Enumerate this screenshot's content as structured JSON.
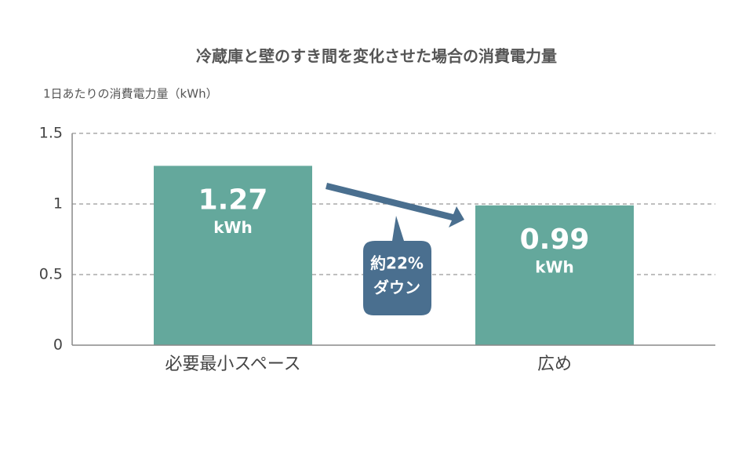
{
  "chart_data": {
    "type": "bar",
    "title": "冷蔵庫と壁のすき間を変化させた場合の消費電力量",
    "y_axis_label": "1日あたりの消費電力量（kWh）",
    "categories": [
      "必要最小スペース",
      "広め"
    ],
    "values": [
      1.27,
      0.99
    ],
    "value_unit": "kWh",
    "color": "#64a89c",
    "ylim": [
      0,
      1.5
    ],
    "yticks": [
      0,
      0.5,
      1,
      1.5
    ],
    "grid": true,
    "annotation": [
      "約22%",
      "ダウン"
    ]
  }
}
